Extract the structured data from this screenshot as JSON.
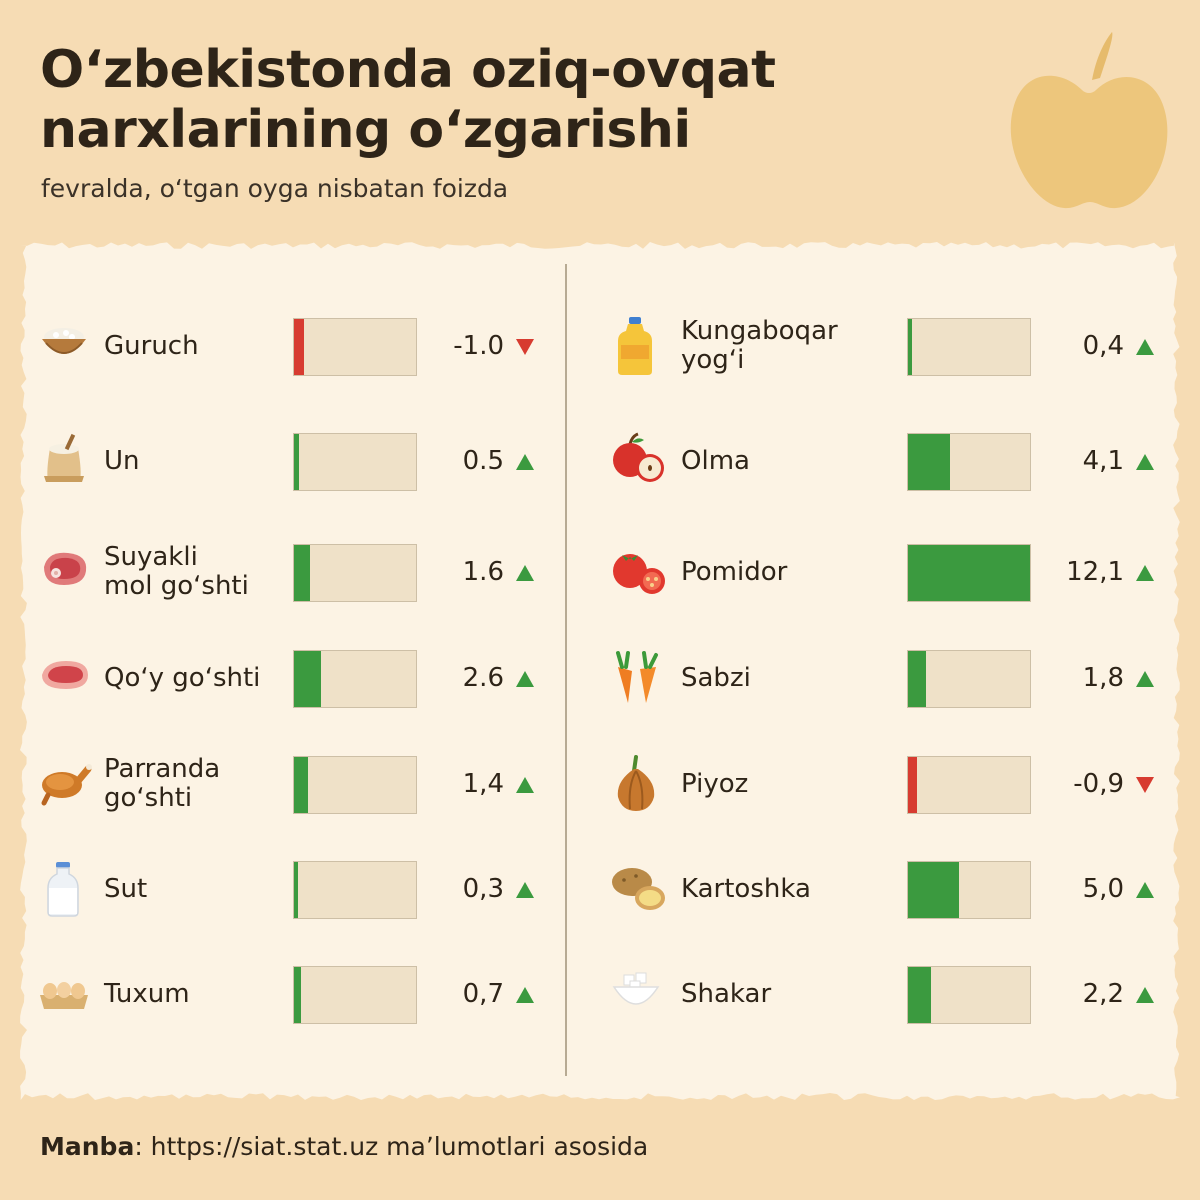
{
  "title_line1": "Oʻzbekistonda oziq-ovqat",
  "title_line2": "narxlarining oʻzgarishi",
  "subtitle": "fevralda, oʻtgan oyga nisbatan foizda",
  "source_label": "Manba",
  "source_text": ": https://siat.stat.uz maʼlumotlari asosida",
  "colors": {
    "background": "#f6dcb4",
    "paper": "#fcf3e4",
    "up": "#3b9a3f",
    "down": "#d73b30",
    "track": "#efe1c8"
  },
  "chart_data": {
    "type": "bar",
    "scale_max": 12.1,
    "series": [
      {
        "name": "",
        "items": [
          {
            "label": [
              "Guruch"
            ],
            "value": -1.0,
            "text": "-1.0",
            "icon": "rice-bowl-icon"
          },
          {
            "label": [
              "Un"
            ],
            "value": 0.5,
            "text": "0.5",
            "icon": "flour-sack-icon"
          },
          {
            "label": [
              "Suyakli",
              "mol goʻshti"
            ],
            "value": 1.6,
            "text": "1.6",
            "icon": "beef-steak-icon"
          },
          {
            "label": [
              "Qoʻy goʻshti"
            ],
            "value": 2.6,
            "text": "2.6",
            "icon": "lamb-meat-icon"
          },
          {
            "label": [
              "Parranda",
              "goʻshti"
            ],
            "value": 1.4,
            "text": "1,4",
            "icon": "roast-chicken-icon"
          },
          {
            "label": [
              "Sut"
            ],
            "value": 0.3,
            "text": "0,3",
            "icon": "milk-bottle-icon"
          },
          {
            "label": [
              "Tuxum"
            ],
            "value": 0.7,
            "text": "0,7",
            "icon": "eggs-icon"
          },
          {
            "label": [
              "Kungaboqar",
              "yogʻi"
            ],
            "value": 0.4,
            "text": "0,4",
            "icon": "oil-bottle-icon"
          },
          {
            "label": [
              "Olma"
            ],
            "value": 4.1,
            "text": "4,1",
            "icon": "apple-icon"
          },
          {
            "label": [
              "Pomidor"
            ],
            "value": 12.1,
            "text": "12,1",
            "icon": "tomato-icon"
          },
          {
            "label": [
              "Sabzi"
            ],
            "value": 1.8,
            "text": "1,8",
            "icon": "carrot-icon"
          },
          {
            "label": [
              "Piyoz"
            ],
            "value": -0.9,
            "text": "-0,9",
            "icon": "onion-icon"
          },
          {
            "label": [
              "Kartoshka"
            ],
            "value": 5.0,
            "text": "5,0",
            "icon": "potato-icon"
          },
          {
            "label": [
              "Shakar"
            ],
            "value": 2.2,
            "text": "2,2",
            "icon": "sugar-bowl-icon"
          }
        ]
      }
    ]
  }
}
